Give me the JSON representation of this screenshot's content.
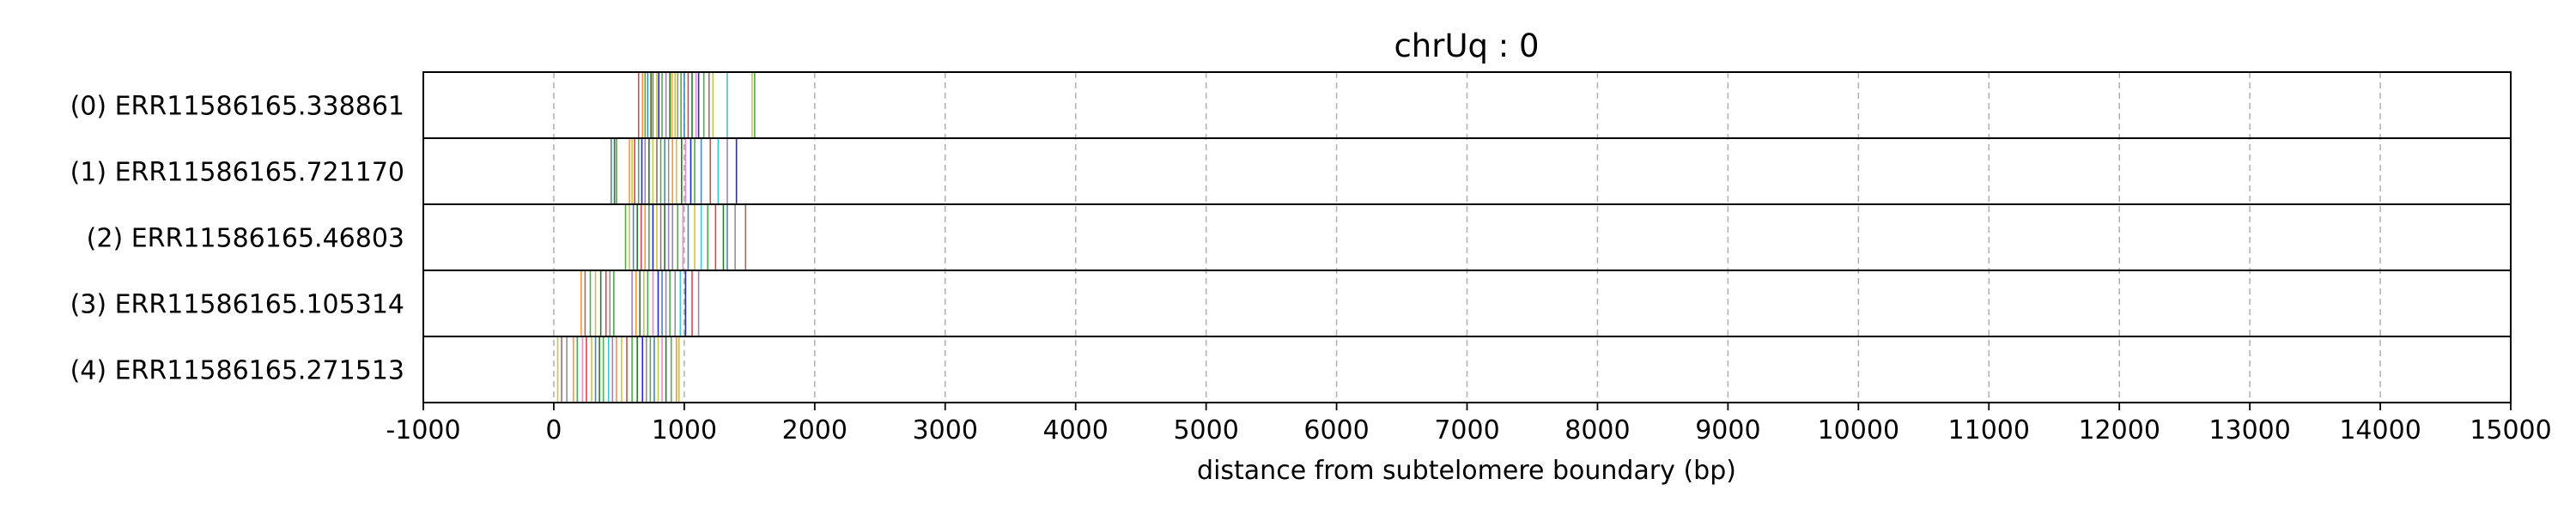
{
  "chart_data": {
    "type": "event-raster",
    "title": "chrUq : 0",
    "xlabel": "distance from subtelomere boundary (bp)",
    "xlim": [
      -1000,
      15000
    ],
    "xticks": [
      -1000,
      0,
      1000,
      2000,
      3000,
      4000,
      5000,
      6000,
      7000,
      8000,
      9000,
      10000,
      11000,
      12000,
      13000,
      14000,
      15000
    ],
    "xtick_labels": [
      "-1000",
      "0",
      "1000",
      "2000",
      "3000",
      "4000",
      "5000",
      "6000",
      "7000",
      "8000",
      "9000",
      "10000",
      "11000",
      "12000",
      "13000",
      "14000",
      "15000"
    ],
    "grid": "x-dashed",
    "colors": [
      "#1f77b4",
      "#ff7f0e",
      "#2ca02c",
      "#d62728",
      "#9467bd",
      "#8c564b",
      "#e377c2",
      "#7f7f7f",
      "#bcbd22",
      "#17becf",
      "#006400",
      "#0000cd"
    ],
    "rows": [
      {
        "label": "(0) ERR11586165.338861",
        "events": [
          {
            "x": 650,
            "c": 3
          },
          {
            "x": 680,
            "c": 1
          },
          {
            "x": 700,
            "c": 2
          },
          {
            "x": 720,
            "c": 0
          },
          {
            "x": 745,
            "c": 10
          },
          {
            "x": 760,
            "c": 5
          },
          {
            "x": 790,
            "c": 8
          },
          {
            "x": 805,
            "c": 11
          },
          {
            "x": 830,
            "c": 2
          },
          {
            "x": 860,
            "c": 4
          },
          {
            "x": 890,
            "c": 10
          },
          {
            "x": 905,
            "c": 1
          },
          {
            "x": 930,
            "c": 8
          },
          {
            "x": 950,
            "c": 7
          },
          {
            "x": 975,
            "c": 2
          },
          {
            "x": 1000,
            "c": 0
          },
          {
            "x": 1030,
            "c": 3
          },
          {
            "x": 1060,
            "c": 10
          },
          {
            "x": 1090,
            "c": 6
          },
          {
            "x": 1110,
            "c": 11
          },
          {
            "x": 1150,
            "c": 2
          },
          {
            "x": 1190,
            "c": 5
          },
          {
            "x": 1220,
            "c": 8
          },
          {
            "x": 1330,
            "c": 9
          },
          {
            "x": 1520,
            "c": 8
          },
          {
            "x": 1540,
            "c": 2
          }
        ]
      },
      {
        "label": "(1) ERR11586165.721170",
        "events": [
          {
            "x": 440,
            "c": 0
          },
          {
            "x": 465,
            "c": 10
          },
          {
            "x": 480,
            "c": 2
          },
          {
            "x": 580,
            "c": 1
          },
          {
            "x": 600,
            "c": 8
          },
          {
            "x": 620,
            "c": 3
          },
          {
            "x": 650,
            "c": 2
          },
          {
            "x": 675,
            "c": 11
          },
          {
            "x": 700,
            "c": 4
          },
          {
            "x": 730,
            "c": 10
          },
          {
            "x": 760,
            "c": 8
          },
          {
            "x": 790,
            "c": 5
          },
          {
            "x": 820,
            "c": 2
          },
          {
            "x": 850,
            "c": 0
          },
          {
            "x": 880,
            "c": 7
          },
          {
            "x": 910,
            "c": 1
          },
          {
            "x": 940,
            "c": 8
          },
          {
            "x": 980,
            "c": 10
          },
          {
            "x": 1010,
            "c": 6
          },
          {
            "x": 1050,
            "c": 11
          },
          {
            "x": 1080,
            "c": 2
          },
          {
            "x": 1130,
            "c": 0
          },
          {
            "x": 1200,
            "c": 3
          },
          {
            "x": 1260,
            "c": 9
          },
          {
            "x": 1330,
            "c": 4
          },
          {
            "x": 1400,
            "c": 11
          }
        ]
      },
      {
        "label": "(2) ERR11586165.46803",
        "events": [
          {
            "x": 550,
            "c": 2
          },
          {
            "x": 580,
            "c": 8
          },
          {
            "x": 610,
            "c": 0
          },
          {
            "x": 640,
            "c": 10
          },
          {
            "x": 670,
            "c": 3
          },
          {
            "x": 700,
            "c": 1
          },
          {
            "x": 730,
            "c": 2
          },
          {
            "x": 760,
            "c": 11
          },
          {
            "x": 790,
            "c": 8
          },
          {
            "x": 820,
            "c": 5
          },
          {
            "x": 850,
            "c": 10
          },
          {
            "x": 880,
            "c": 4
          },
          {
            "x": 910,
            "c": 7
          },
          {
            "x": 950,
            "c": 2
          },
          {
            "x": 990,
            "c": 6
          },
          {
            "x": 1030,
            "c": 0
          },
          {
            "x": 1080,
            "c": 8
          },
          {
            "x": 1130,
            "c": 9
          },
          {
            "x": 1180,
            "c": 2
          },
          {
            "x": 1240,
            "c": 3
          },
          {
            "x": 1300,
            "c": 10
          },
          {
            "x": 1330,
            "c": 0
          },
          {
            "x": 1390,
            "c": 7
          },
          {
            "x": 1470,
            "c": 5
          }
        ]
      },
      {
        "label": "(3) ERR11586165.105314",
        "events": [
          {
            "x": 210,
            "c": 1
          },
          {
            "x": 240,
            "c": 5
          },
          {
            "x": 280,
            "c": 2
          },
          {
            "x": 320,
            "c": 8
          },
          {
            "x": 360,
            "c": 10
          },
          {
            "x": 400,
            "c": 3
          },
          {
            "x": 430,
            "c": 7
          },
          {
            "x": 460,
            "c": 2
          },
          {
            "x": 600,
            "c": 4
          },
          {
            "x": 630,
            "c": 1
          },
          {
            "x": 660,
            "c": 10
          },
          {
            "x": 690,
            "c": 8
          },
          {
            "x": 720,
            "c": 2
          },
          {
            "x": 760,
            "c": 6
          },
          {
            "x": 800,
            "c": 11
          },
          {
            "x": 830,
            "c": 0
          },
          {
            "x": 860,
            "c": 4
          },
          {
            "x": 890,
            "c": 2
          },
          {
            "x": 930,
            "c": 7
          },
          {
            "x": 970,
            "c": 9
          },
          {
            "x": 1010,
            "c": 11
          },
          {
            "x": 1060,
            "c": 3
          },
          {
            "x": 1110,
            "c": 4
          }
        ]
      },
      {
        "label": "(4) ERR11586165.271513",
        "events": [
          {
            "x": 30,
            "c": 8
          },
          {
            "x": 60,
            "c": 5
          },
          {
            "x": 100,
            "c": 7
          },
          {
            "x": 150,
            "c": 1
          },
          {
            "x": 180,
            "c": 2
          },
          {
            "x": 220,
            "c": 6
          },
          {
            "x": 250,
            "c": 3
          },
          {
            "x": 290,
            "c": 8
          },
          {
            "x": 320,
            "c": 0
          },
          {
            "x": 350,
            "c": 10
          },
          {
            "x": 380,
            "c": 2
          },
          {
            "x": 420,
            "c": 9
          },
          {
            "x": 450,
            "c": 4
          },
          {
            "x": 480,
            "c": 1
          },
          {
            "x": 520,
            "c": 8
          },
          {
            "x": 560,
            "c": 3
          },
          {
            "x": 600,
            "c": 2
          },
          {
            "x": 640,
            "c": 10
          },
          {
            "x": 680,
            "c": 11
          },
          {
            "x": 710,
            "c": 7
          },
          {
            "x": 740,
            "c": 2
          },
          {
            "x": 770,
            "c": 0
          },
          {
            "x": 800,
            "c": 8
          },
          {
            "x": 830,
            "c": 6
          },
          {
            "x": 860,
            "c": 10
          },
          {
            "x": 900,
            "c": 2
          },
          {
            "x": 940,
            "c": 1
          },
          {
            "x": 960,
            "c": 8
          }
        ]
      }
    ]
  }
}
